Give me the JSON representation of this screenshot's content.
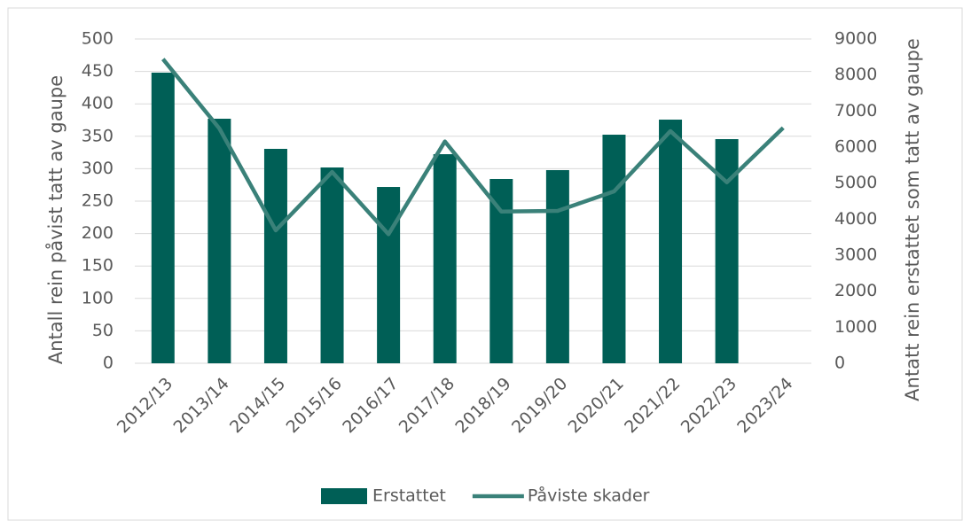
{
  "chart_data": {
    "type": "bar_line",
    "categories": [
      "2012/13",
      "2013/14",
      "2014/15",
      "2015/16",
      "2016/17",
      "2017/18",
      "2018/19",
      "2019/20",
      "2020/21",
      "2021/22",
      "2022/23",
      "2023/24"
    ],
    "series": [
      {
        "name": "Erstattet",
        "type": "bar",
        "axis": "y2",
        "color": "#005f56",
        "values": [
          8066,
          6787,
          5951,
          5434,
          4893,
          5803,
          5115,
          5361,
          6344,
          6762,
          6221,
          null
        ]
      },
      {
        "name": "Påviste skader",
        "type": "line",
        "axis": "y",
        "color": "#3a8179",
        "values": [
          469,
          362,
          205,
          295,
          199,
          342,
          234,
          235,
          265,
          358,
          279,
          363
        ]
      }
    ],
    "ylabel": "Antall rein påvist tatt av gaupe",
    "y2label": "Antatt rein erstattet som tatt av gaupe",
    "ylim": [
      0,
      500
    ],
    "yticks": [
      0,
      50,
      100,
      150,
      200,
      250,
      300,
      350,
      400,
      450,
      500
    ],
    "y2lim": [
      0,
      9000
    ],
    "y2ticks": [
      0,
      1000,
      2000,
      3000,
      4000,
      5000,
      6000,
      7000,
      8000,
      9000
    ],
    "grid": true,
    "legend": "bottom"
  }
}
